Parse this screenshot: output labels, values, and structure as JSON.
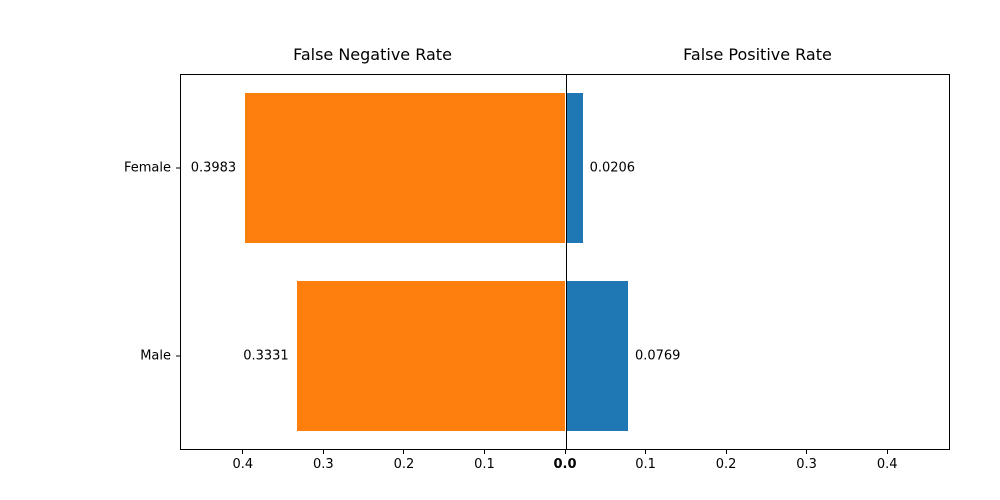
{
  "figure": {
    "background": "#ffffff",
    "left_title": "False Negative Rate",
    "right_title": "False Positive Rate"
  },
  "chart_data": {
    "type": "bar",
    "variant": "horizontal-diverging",
    "categories": [
      "Female",
      "Male"
    ],
    "series": [
      {
        "name": "False Negative Rate",
        "side": "left",
        "color": "#ff7f0e",
        "values": [
          0.3983,
          0.3331
        ],
        "value_labels": [
          "0.3983",
          "0.3331"
        ]
      },
      {
        "name": "False Positive Rate",
        "side": "right",
        "color": "#1f77b4",
        "values": [
          0.0206,
          0.0769
        ],
        "value_labels": [
          "0.0206",
          "0.0769"
        ]
      }
    ],
    "x_axis": {
      "left_tick_labels": [
        "0.4",
        "0.3",
        "0.2",
        "0.1"
      ],
      "left_tick_values": [
        0.4,
        0.3,
        0.2,
        0.1
      ],
      "center_tick_label": "0.0",
      "right_tick_labels": [
        "0.1",
        "0.2",
        "0.3",
        "0.4"
      ],
      "right_tick_values": [
        0.1,
        0.2,
        0.3,
        0.4
      ],
      "max_per_side": 0.478
    },
    "grid": false,
    "legend": false
  }
}
